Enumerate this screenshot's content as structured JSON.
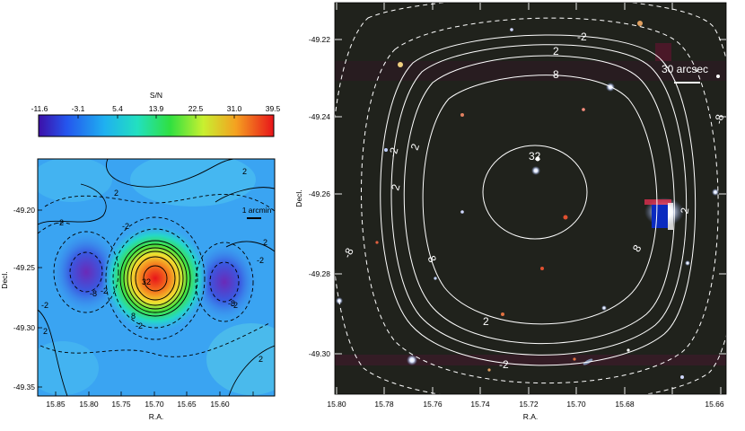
{
  "colorbar": {
    "title": "S/N",
    "ticks": [
      "-11.6",
      "-3.1",
      "5.4",
      "13.9",
      "22.5",
      "31.0",
      "39.5"
    ]
  },
  "left_panel": {
    "xlabel": "R.A.",
    "ylabel": "Decl.",
    "x_ticks": [
      "15.85",
      "15.80",
      "15.75",
      "15.70",
      "15.65",
      "15.60"
    ],
    "y_ticks": [
      "-49.20",
      "-49.25",
      "-49.30",
      "-49.35"
    ],
    "scale_label": "1 arcmin",
    "contour_labels": [
      "2",
      "-2",
      "2",
      "-2",
      "-2",
      "32",
      "8",
      "-2",
      "-2",
      "2",
      "-2",
      "2",
      "-2",
      "2",
      "-8",
      "-8"
    ]
  },
  "right_panel": {
    "xlabel": "R.A.",
    "ylabel": "Decl.",
    "x_ticks": [
      "15.80",
      "15.78",
      "15.76",
      "15.74",
      "15.72",
      "15.70",
      "15.68",
      "15.66"
    ],
    "y_ticks": [
      "-49.22",
      "-49.24",
      "-49.26",
      "-49.28",
      "-49.30"
    ],
    "scale_label": "30 arcsec",
    "contour_labels": [
      "-2",
      "2",
      "8",
      "32",
      "2",
      "-8",
      "2",
      "8",
      "-2",
      "2",
      "8",
      "2",
      "-2",
      "-8"
    ]
  },
  "colors": {
    "low": "#5a1fbf",
    "background": "#2f9ff0",
    "peak": "#e8141a",
    "sky": "#20221c"
  }
}
